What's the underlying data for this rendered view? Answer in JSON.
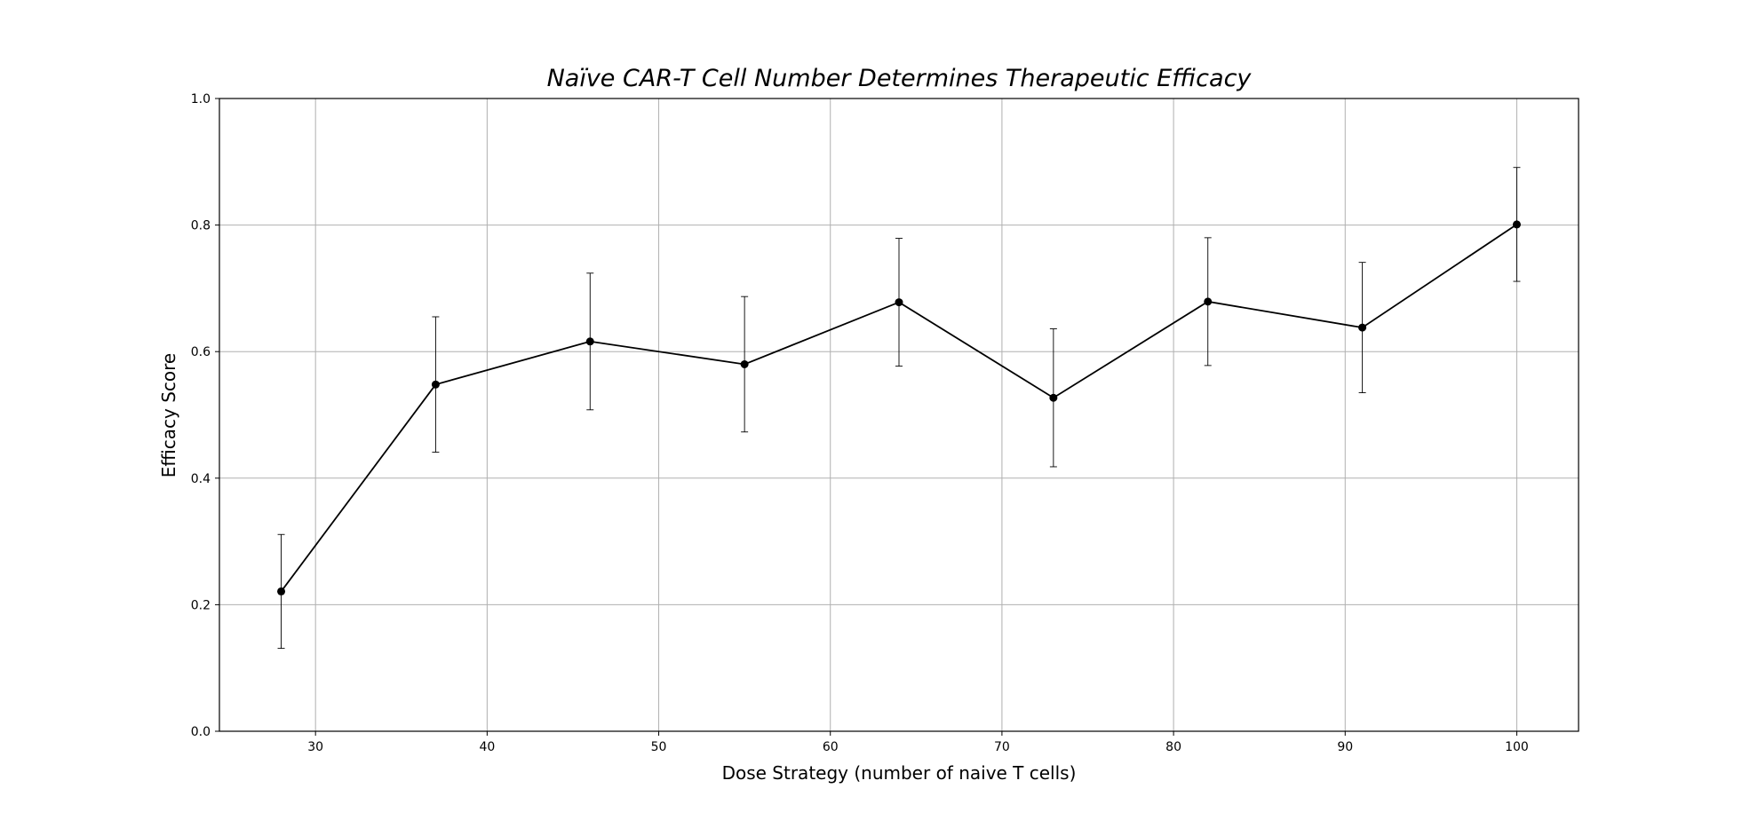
{
  "chart_data": {
    "type": "line",
    "title": "Naïve CAR-T Cell Number Determines Therapeutic Efficacy",
    "xlabel": "Dose Strategy (number of naive T cells)",
    "ylabel": "Efficacy Score",
    "xlim": [
      24.4,
      103.6
    ],
    "ylim": [
      0.0,
      1.0
    ],
    "x_ticks": [
      30,
      40,
      50,
      60,
      70,
      80,
      90,
      100
    ],
    "y_ticks": [
      0.0,
      0.2,
      0.4,
      0.6,
      0.8,
      1.0
    ],
    "x_tick_labels": [
      "30",
      "40",
      "50",
      "60",
      "70",
      "80",
      "90",
      "100"
    ],
    "y_tick_labels": [
      "0.0",
      "0.2",
      "0.4",
      "0.6",
      "0.8",
      "1.0"
    ],
    "grid": true,
    "series": [
      {
        "x": [
          28,
          37,
          46,
          55,
          64,
          73,
          82,
          91,
          100
        ],
        "y": [
          0.221,
          0.548,
          0.616,
          0.58,
          0.678,
          0.527,
          0.679,
          0.638,
          0.801
        ],
        "error": [
          0.09,
          0.107,
          0.108,
          0.107,
          0.101,
          0.109,
          0.101,
          0.103,
          0.09
        ],
        "color": "#000000"
      }
    ],
    "colors": {
      "line": "#000000",
      "grid": "#b0b0b0",
      "axis": "#000000"
    }
  }
}
